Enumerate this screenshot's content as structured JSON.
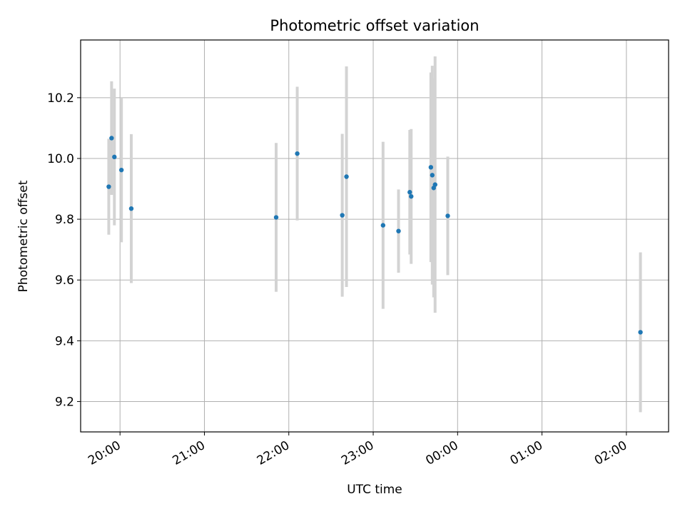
{
  "chart_data": {
    "type": "scatter",
    "title": "Photometric offset variation",
    "xlabel": "UTC time",
    "ylabel": "Photometric offset",
    "x_unit": "UTC time (HH:MM)",
    "xlim": [
      "19:32",
      "02:30"
    ],
    "ylim": [
      9.1,
      10.39
    ],
    "grid": true,
    "x_ticks": [
      "20:00",
      "21:00",
      "22:00",
      "23:00",
      "00:00",
      "01:00",
      "02:00"
    ],
    "y_ticks": [
      9.2,
      9.4,
      9.6,
      9.8,
      10.0,
      10.2
    ],
    "y_tick_labels": [
      "9.2",
      "9.4",
      "9.6",
      "9.8",
      "10.0",
      "10.2"
    ],
    "colors": {
      "point": "#1f77b4",
      "errorbar": "#d3d3d3",
      "grid": "#b0b0b0"
    },
    "points": [
      {
        "t": "19:52",
        "y": 9.907,
        "err": 0.158
      },
      {
        "t": "19:54",
        "y": 10.067,
        "err": 0.187
      },
      {
        "t": "19:56",
        "y": 10.005,
        "err": 0.225
      },
      {
        "t": "20:01",
        "y": 9.962,
        "err": 0.238
      },
      {
        "t": "20:08",
        "y": 9.835,
        "err": 0.245
      },
      {
        "t": "21:51",
        "y": 9.806,
        "err": 0.245
      },
      {
        "t": "22:06",
        "y": 10.016,
        "err": 0.22
      },
      {
        "t": "22:38",
        "y": 9.813,
        "err": 0.268
      },
      {
        "t": "22:41",
        "y": 9.94,
        "err": 0.363
      },
      {
        "t": "23:07",
        "y": 9.78,
        "err": 0.275
      },
      {
        "t": "23:18",
        "y": 9.761,
        "err": 0.137
      },
      {
        "t": "23:26",
        "y": 9.889,
        "err": 0.205
      },
      {
        "t": "23:27",
        "y": 9.875,
        "err": 0.222
      },
      {
        "t": "23:41",
        "y": 9.971,
        "err": 0.312
      },
      {
        "t": "23:42",
        "y": 9.945,
        "err": 0.36
      },
      {
        "t": "23:43",
        "y": 9.903,
        "err": 0.36
      },
      {
        "t": "23:44",
        "y": 9.914,
        "err": 0.422
      },
      {
        "t": "23:53",
        "y": 9.811,
        "err": 0.195
      },
      {
        "t": "02:10",
        "y": 9.428,
        "err": 0.263
      }
    ]
  }
}
